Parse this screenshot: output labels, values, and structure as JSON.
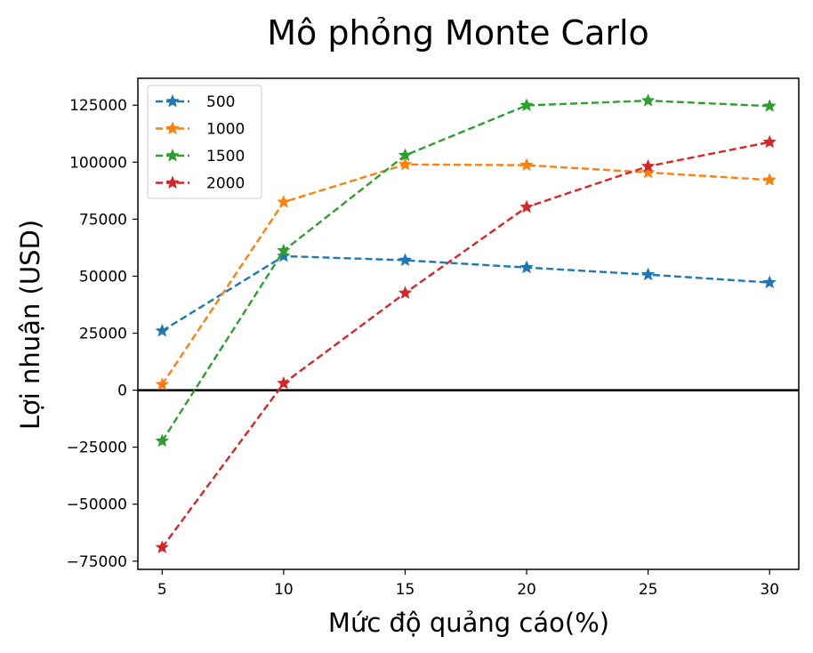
{
  "chart_data": {
    "type": "line",
    "title": "Mô phỏng Monte Carlo",
    "xlabel": "Mức độ quảng cáo(%)",
    "ylabel": "Lợi nhuận (USD)",
    "x": [
      5,
      10,
      15,
      20,
      25,
      30
    ],
    "xticks": [
      "5",
      "10",
      "15",
      "20",
      "25",
      "30"
    ],
    "yticks": [
      "−75000",
      "−50000",
      "−25000",
      "0",
      "25000",
      "50000",
      "75000",
      "100000",
      "125000"
    ],
    "ytick_values": [
      -75000,
      -50000,
      -25000,
      0,
      25000,
      50000,
      75000,
      100000,
      125000
    ],
    "xlim": [
      4,
      31.2
    ],
    "ylim": [
      -78600,
      136800
    ],
    "grid": false,
    "legend_position": "upper left",
    "reference_line": {
      "y": 0,
      "color": "#000000"
    },
    "series": [
      {
        "name": "500",
        "color": "#1f77b4",
        "values": [
          26000,
          58800,
          57000,
          53800,
          50700,
          47200
        ]
      },
      {
        "name": "1000",
        "color": "#ff7f0e",
        "values": [
          2500,
          82500,
          99000,
          98700,
          95500,
          92200
        ]
      },
      {
        "name": "1500",
        "color": "#2ca02c",
        "values": [
          -22300,
          61200,
          103000,
          124900,
          127000,
          124600
        ]
      },
      {
        "name": "2000",
        "color": "#d62728",
        "values": [
          -69000,
          3000,
          42600,
          80300,
          98200,
          108800
        ]
      }
    ]
  }
}
